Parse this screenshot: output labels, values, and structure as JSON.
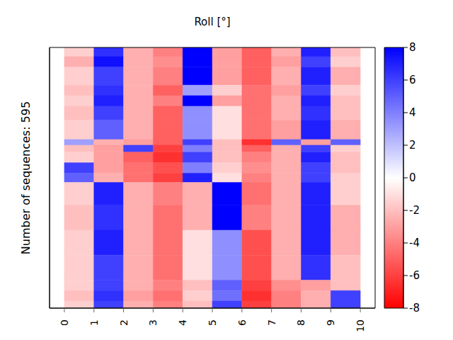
{
  "chart_data": {
    "type": "heatmap",
    "title": "Roll [°]",
    "ylabel": "Number of sequences: 595",
    "x_edges": [
      0,
      1,
      2,
      3,
      4,
      5,
      6,
      7,
      8,
      9,
      10
    ],
    "rows": [
      {
        "count": 21,
        "values": [
          -1.5,
          6.5,
          -2.5,
          -4,
          8,
          -3,
          -5,
          -2.5,
          7,
          -2
        ]
      },
      {
        "count": 24,
        "values": [
          -2.5,
          7.5,
          -2.5,
          -3.5,
          8,
          -3,
          -5,
          -3,
          6,
          -1.5
        ]
      },
      {
        "count": 41,
        "values": [
          -1.5,
          6,
          -2.5,
          -4,
          8,
          -3,
          -5,
          -2.5,
          7,
          -2.5
        ]
      },
      {
        "count": 24,
        "values": [
          -2,
          6.5,
          -2.5,
          -5,
          3,
          -1.5,
          -4.5,
          -3,
          6,
          -1.5
        ]
      },
      {
        "count": 24,
        "values": [
          -1.5,
          7,
          -2.5,
          -4,
          8,
          -3,
          -4.5,
          -2.5,
          7,
          -2
        ]
      },
      {
        "count": 32,
        "values": [
          -2,
          6,
          -2.5,
          -5,
          3.5,
          -1,
          -4.5,
          -2.5,
          6.5,
          -2
        ]
      },
      {
        "count": 44,
        "values": [
          -1.5,
          5,
          -2.5,
          -5,
          3.5,
          -1,
          -4.5,
          -3,
          7,
          -2.5
        ]
      },
      {
        "count": 13,
        "values": [
          3,
          -2.5,
          -3,
          -5,
          6,
          -2,
          -6.5,
          5,
          -3,
          5
        ]
      },
      {
        "count": 16,
        "values": [
          -2,
          -3,
          6,
          -6,
          4,
          -2,
          -5,
          -2.5,
          6,
          -1.5
        ]
      },
      {
        "count": 24,
        "values": [
          -1.5,
          -3,
          -5,
          -6.5,
          6,
          -2,
          -4,
          -2.5,
          7,
          -2
        ]
      },
      {
        "count": 24,
        "values": [
          6,
          -3,
          -4.5,
          -5.5,
          4,
          -1.5,
          -3.5,
          -2.5,
          6,
          -2
        ]
      },
      {
        "count": 21,
        "values": [
          5,
          -2.5,
          -4.5,
          -6,
          7,
          -1,
          -4,
          -2.5,
          6,
          -1.5
        ]
      },
      {
        "count": 52,
        "values": [
          -1.5,
          7,
          -2.5,
          -4,
          -2.5,
          8,
          -4.5,
          -2.5,
          7,
          -1.5
        ]
      },
      {
        "count": 57,
        "values": [
          -2,
          6.5,
          -2.5,
          -4.5,
          -2.5,
          8,
          -4,
          -2.5,
          7,
          -2.5
        ]
      },
      {
        "count": 57,
        "values": [
          -1.5,
          7,
          -2.5,
          -4.5,
          -1,
          3.5,
          -5.5,
          -2.5,
          7,
          -2.5
        ]
      },
      {
        "count": 57,
        "values": [
          -1.5,
          6,
          -2.5,
          -4.5,
          -1,
          3.5,
          -5.5,
          -2.5,
          6.5,
          -2
        ]
      },
      {
        "count": 24,
        "values": [
          -1.5,
          6,
          -2.5,
          -4,
          -2,
          5,
          -6,
          -3.5,
          -3,
          -2
        ]
      },
      {
        "count": 24,
        "values": [
          -2,
          6.5,
          -3,
          -4.5,
          -1.5,
          4.5,
          -6.5,
          -4,
          -2.5,
          6
        ]
      },
      {
        "count": 16,
        "values": [
          -1.5,
          6,
          -2.5,
          -4,
          -2,
          6,
          -6,
          -4,
          -2.5,
          6
        ]
      }
    ],
    "xlim": [
      -0.5,
      10.5
    ],
    "xticks": [
      0,
      1,
      2,
      3,
      4,
      5,
      6,
      7,
      8,
      9,
      10
    ],
    "ylim": [
      0,
      595
    ],
    "tick_labels": "x",
    "colorbar": {
      "range": [
        -8,
        8
      ],
      "ticks": [
        -8,
        -6,
        -4,
        -2,
        0,
        2,
        4,
        6,
        8
      ]
    }
  }
}
